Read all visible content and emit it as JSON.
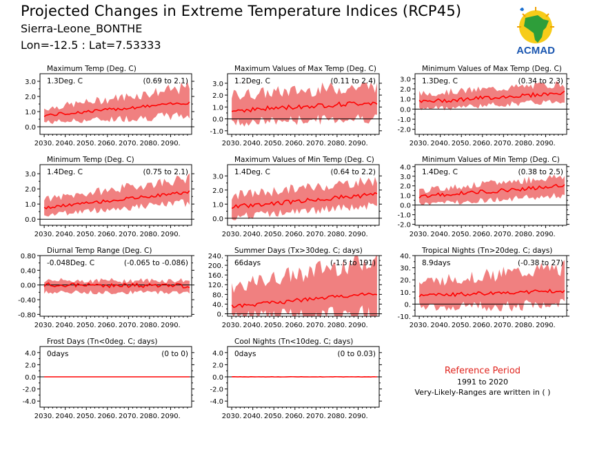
{
  "header": {
    "title": "Projected Changes in Extreme Temperature Indices (RCP45)",
    "station": "Sierra-Leone_BONTHE",
    "coords": "Lon=-12.5 : Lat=7.53333"
  },
  "logo": {
    "text": "ACMAD",
    "icon": "africa-map-logo"
  },
  "reference": {
    "title": "Reference Period",
    "years": "1991 to 2020",
    "note": "Very-Likely-Ranges are written in ( )"
  },
  "colors": {
    "band": "#f08080",
    "median": "#ff0000",
    "reference_title": "#e0231c"
  },
  "chart_data": [
    {
      "type": "area",
      "title": "Maximum Temp (Deg. C)",
      "mean_text": "1.3Deg. C",
      "range_text": "(0.69 to 2.1)",
      "x": [
        2030,
        2099
      ],
      "xticks": [
        "2030.",
        "2040.",
        "2050.",
        "2060.",
        "2070.",
        "2080.",
        "2090."
      ],
      "ylim": [
        -0.5,
        3.5
      ],
      "yticks": [
        0,
        1,
        2,
        3
      ],
      "ytick_labels": [
        "0.0",
        "1.0",
        "2.0",
        "3.0"
      ],
      "median": {
        "start": 0.75,
        "end": 1.6,
        "noise": 0.1
      },
      "band": {
        "lower_start": 0.3,
        "lower_end": 0.75,
        "upper_start": 1.2,
        "upper_end": 2.6
      }
    },
    {
      "type": "area",
      "title": "Maximum Values of Max Temp (Deg. C)",
      "mean_text": "1.2Deg. C",
      "range_text": "(0.11 to 2.4)",
      "x": [
        2030,
        2099
      ],
      "xticks": [
        "2030.",
        "2040.",
        "2050.",
        "2060.",
        "2070.",
        "2080.",
        "2090."
      ],
      "ylim": [
        -1.3,
        3.8
      ],
      "yticks": [
        -1,
        0,
        1,
        2,
        3
      ],
      "ytick_labels": [
        "-1.0",
        "0.0",
        "1.0",
        "2.0",
        "3.0"
      ],
      "median": {
        "start": 0.7,
        "end": 1.4,
        "noise": 0.2
      },
      "band": {
        "lower_start": -0.3,
        "lower_end": 0.1,
        "upper_start": 2.0,
        "upper_end": 2.8
      }
    },
    {
      "type": "area",
      "title": "Minimum Values of Max Temp (Deg. C)",
      "mean_text": "1.3Deg. C",
      "range_text": "(0.34 to 2.3)",
      "x": [
        2030,
        2099
      ],
      "xticks": [
        "2030.",
        "2040.",
        "2050.",
        "2060.",
        "2070.",
        "2080.",
        "2090."
      ],
      "ylim": [
        -2.5,
        3.5
      ],
      "yticks": [
        -2,
        -1,
        0,
        1,
        2,
        3
      ],
      "ytick_labels": [
        "-2.0",
        "-1.0",
        "0.0",
        "1.0",
        "2.0",
        "3.0"
      ],
      "median": {
        "start": 0.7,
        "end": 1.6,
        "noise": 0.2
      },
      "band": {
        "lower_start": 0.0,
        "lower_end": 0.8,
        "upper_start": 1.5,
        "upper_end": 2.5
      }
    },
    {
      "type": "area",
      "title": "Minimum Temp (Deg. C)",
      "mean_text": "1.4Deg. C",
      "range_text": "(0.75 to 2.1)",
      "x": [
        2030,
        2099
      ],
      "xticks": [
        "2030.",
        "2040.",
        "2050.",
        "2060.",
        "2070.",
        "2080.",
        "2090."
      ],
      "ylim": [
        -0.4,
        3.6
      ],
      "yticks": [
        0,
        1,
        2,
        3
      ],
      "ytick_labels": [
        "0.0",
        "1.0",
        "2.0",
        "3.0"
      ],
      "median": {
        "start": 0.75,
        "end": 1.8,
        "noise": 0.1
      },
      "band": {
        "lower_start": 0.3,
        "lower_end": 1.1,
        "upper_start": 1.3,
        "upper_end": 2.7
      }
    },
    {
      "type": "area",
      "title": "Maximum Values of Min Temp (Deg. C)",
      "mean_text": "1.4Deg. C",
      "range_text": "(0.64 to 2.2)",
      "x": [
        2030,
        2099
      ],
      "xticks": [
        "2030.",
        "2040.",
        "2050.",
        "2060.",
        "2070.",
        "2080.",
        "2090."
      ],
      "ylim": [
        -0.5,
        3.8
      ],
      "yticks": [
        0,
        1,
        2,
        3
      ],
      "ytick_labels": [
        "0.0",
        "1.0",
        "2.0",
        "3.0"
      ],
      "median": {
        "start": 0.8,
        "end": 1.7,
        "noise": 0.15
      },
      "band": {
        "lower_start": 0.1,
        "lower_end": 0.9,
        "upper_start": 1.6,
        "upper_end": 2.7
      }
    },
    {
      "type": "area",
      "title": "Minimum Values of Min Temp (Deg. C)",
      "mean_text": "1.4Deg. C",
      "range_text": "(0.38 to 2.5)",
      "x": [
        2030,
        2099
      ],
      "xticks": [
        "2030.",
        "2040.",
        "2050.",
        "2060.",
        "2070.",
        "2080.",
        "2090."
      ],
      "ylim": [
        -2.1,
        4.2
      ],
      "yticks": [
        -2,
        -1,
        0,
        1,
        2,
        3,
        4
      ],
      "ytick_labels": [
        "-2.0",
        "-1.0",
        "0.0",
        "1.0",
        "2.0",
        "3.0",
        "4.0"
      ],
      "median": {
        "start": 0.9,
        "end": 2.0,
        "noise": 0.2
      },
      "band": {
        "lower_start": 0.1,
        "lower_end": 1.0,
        "upper_start": 1.5,
        "upper_end": 3.0
      }
    },
    {
      "type": "area",
      "title": "Diurnal Temp Range (Deg. C)",
      "mean_text": "-0.048Deg. C",
      "range_text": "(-0.065 to -0.086)",
      "x": [
        2030,
        2099
      ],
      "xticks": [
        "2030.",
        "2040.",
        "2050.",
        "2060.",
        "2070.",
        "2080.",
        "2090."
      ],
      "ylim": [
        -0.85,
        0.8
      ],
      "yticks": [
        -0.8,
        -0.4,
        0,
        0.4,
        0.8
      ],
      "ytick_labels": [
        "-0.80",
        "-0.40",
        "0.00",
        "0.40",
        "0.80"
      ],
      "median": {
        "start": 0.0,
        "end": -0.02,
        "noise": 0.06
      },
      "band": {
        "lower_start": -0.2,
        "lower_end": -0.2,
        "upper_start": 0.12,
        "upper_end": 0.12
      }
    },
    {
      "type": "area",
      "title": "Summer Days (Tx>30deg. C; days)",
      "mean_text": "66days",
      "range_text": "(-1.5 to 191)",
      "x": [
        2030,
        2099
      ],
      "xticks": [
        "2030.",
        "2040.",
        "2050.",
        "2060.",
        "2070.",
        "2080.",
        "2090."
      ],
      "ylim": [
        -10,
        240
      ],
      "yticks": [
        0,
        40,
        80,
        120,
        160,
        200,
        240
      ],
      "ytick_labels": [
        "0.",
        "40.",
        "80.",
        "120.",
        "160.",
        "200.",
        "240."
      ],
      "median": {
        "start": 30,
        "end": 85,
        "noise": 8
      },
      "band": {
        "lower_start": -5,
        "lower_end": 0,
        "upper_start": 110,
        "upper_end": 230
      }
    },
    {
      "type": "area",
      "title": "Tropical Nights (Tn>20deg. C; days)",
      "mean_text": "8.9days",
      "range_text": "(-0.38 to 27)",
      "x": [
        2030,
        2099
      ],
      "xticks": [
        "2030.",
        "2040.",
        "2050.",
        "2060.",
        "2070.",
        "2080.",
        "2090."
      ],
      "ylim": [
        -10,
        40
      ],
      "yticks": [
        -10,
        0,
        10,
        20,
        30,
        40
      ],
      "ytick_labels": [
        "-10.",
        "0.",
        "10.",
        "20.",
        "30.",
        "40."
      ],
      "median": {
        "start": 7,
        "end": 11,
        "noise": 1.5
      },
      "band": {
        "lower_start": -2,
        "lower_end": -1,
        "upper_start": 18,
        "upper_end": 30
      }
    },
    {
      "type": "area",
      "title": "Frost Days (Tn<0deg. C; days)",
      "mean_text": "0days",
      "range_text": "(0 to 0)",
      "x": [
        2030,
        2099
      ],
      "xticks": [
        "2030.",
        "2040.",
        "2050.",
        "2060.",
        "2070.",
        "2080.",
        "2090."
      ],
      "ylim": [
        -5,
        5
      ],
      "yticks": [
        -4,
        -2,
        0,
        2,
        4
      ],
      "ytick_labels": [
        "-4.0",
        "-2.0",
        "0.0",
        "2.0",
        "4.0"
      ],
      "median": {
        "start": 0,
        "end": 0,
        "noise": 0
      },
      "band": {
        "lower_start": 0,
        "lower_end": 0,
        "upper_start": 0,
        "upper_end": 0
      }
    },
    {
      "type": "area",
      "title": "Cool Nights (Tn<10deg. C; days)",
      "mean_text": "0days",
      "range_text": "(0 to 0.03)",
      "x": [
        2030,
        2099
      ],
      "xticks": [
        "2030.",
        "2040.",
        "2050.",
        "2060.",
        "2070.",
        "2080.",
        "2090."
      ],
      "ylim": [
        -5,
        5
      ],
      "yticks": [
        -4,
        -2,
        0,
        2,
        4
      ],
      "ytick_labels": [
        "-4.0",
        "-2.0",
        "0.0",
        "2.0",
        "4.0"
      ],
      "median": {
        "start": 0,
        "end": 0,
        "noise": 0.02
      },
      "band": {
        "lower_start": 0,
        "lower_end": 0,
        "upper_start": 0.05,
        "upper_end": 0.05
      }
    }
  ]
}
